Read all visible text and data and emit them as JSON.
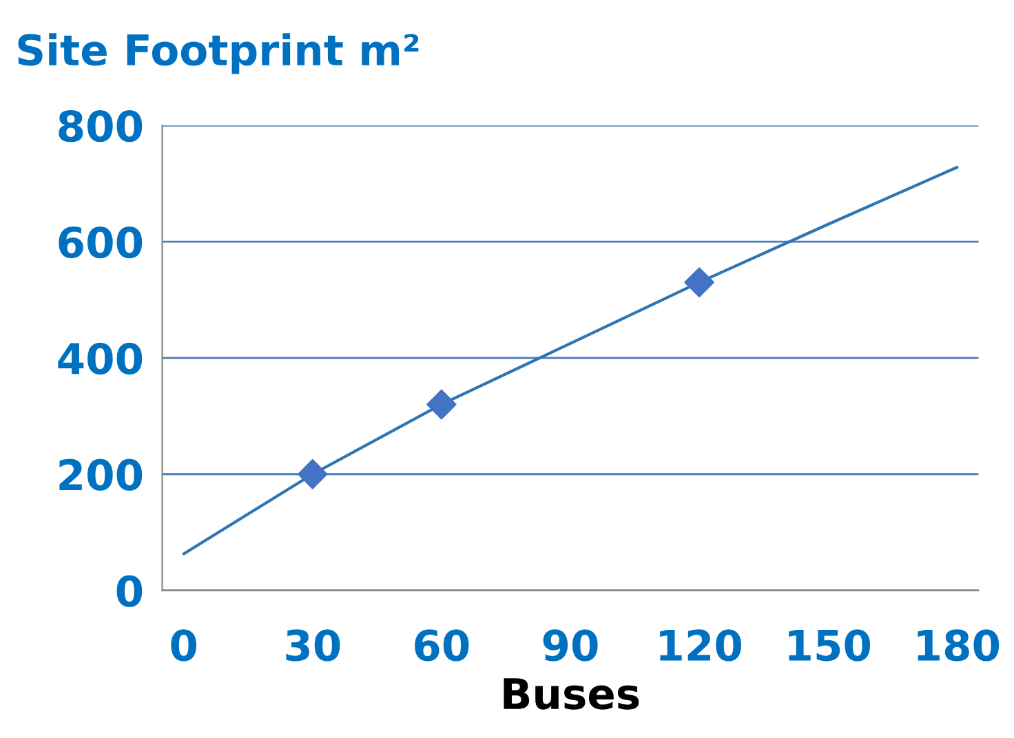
{
  "chart_data": {
    "type": "scatter",
    "title": "Site Footprint m²",
    "xlabel": "Buses",
    "xlim": [
      -5,
      185
    ],
    "xticks": [
      0,
      30,
      60,
      90,
      120,
      150,
      180
    ],
    "ylim": [
      0,
      800
    ],
    "yticks": [
      0,
      200,
      400,
      600,
      800
    ],
    "grid": "y",
    "series": [
      {
        "color": "#4472c4",
        "marker": "diamond",
        "x": [
          30,
          60,
          120
        ],
        "values": [
          200,
          320,
          530
        ]
      },
      {
        "type": "line",
        "color": "#2e75b6",
        "x": [
          0,
          30,
          60,
          90,
          120,
          150,
          180
        ],
        "values": [
          63,
          200,
          320,
          425,
          530,
          630,
          728
        ]
      }
    ]
  }
}
